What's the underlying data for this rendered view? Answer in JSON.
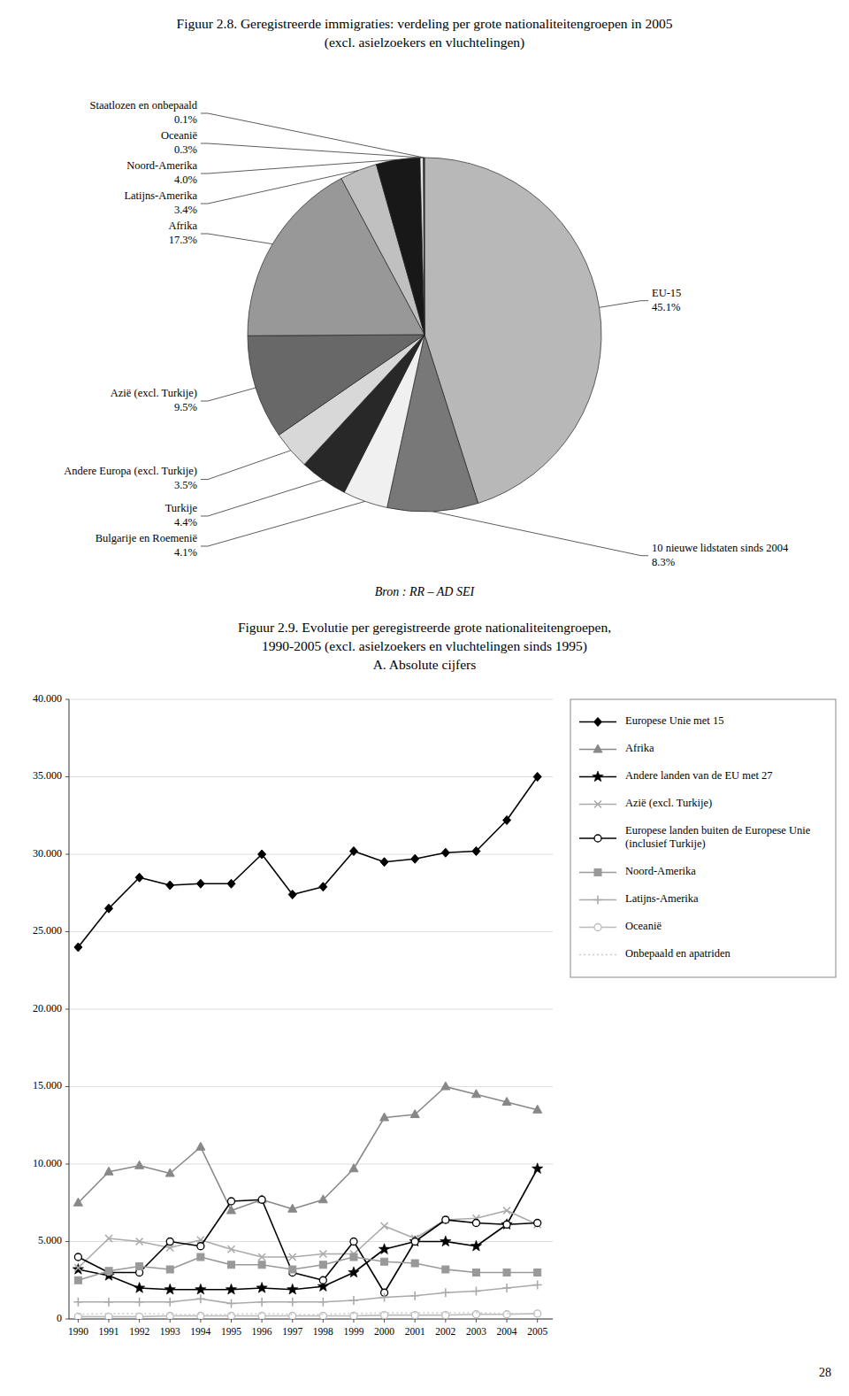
{
  "chart_data": [
    {
      "type": "pie",
      "title": "Figuur 2.8. Geregistreerde immigraties: verdeling per grote nationaliteitengroepen in 2005",
      "subtitle": "(excl. asielzoekers en vluchtelingen)",
      "categories": [
        "EU-15",
        "10 nieuwe lidstaten sinds 2004",
        "Bulgarije en Roemenië",
        "Turkije",
        "Andere Europa (excl. Turkije)",
        "Azië (excl. Turkije)",
        "Afrika",
        "Latijns-Amerika",
        "Noord-Amerika",
        "Oceanië",
        "Staatlozen en onbepaald"
      ],
      "values": [
        45.1,
        8.3,
        4.1,
        4.4,
        3.5,
        9.5,
        17.3,
        3.4,
        4.0,
        0.3,
        0.1
      ],
      "value_labels": [
        "45.1%",
        "8.3%",
        "4.1%",
        "4.4%",
        "3.5%",
        "9.5%",
        "17.3%",
        "3.4%",
        "4.0%",
        "0.3%",
        "0.1%"
      ],
      "colors": [
        "#b8b8b8",
        "#787878",
        "#f0f0f0",
        "#282828",
        "#d8d8d8",
        "#686868",
        "#989898",
        "#c0c0c0",
        "#181818",
        "#e8e8e8",
        "#484848"
      ],
      "data_labels": true,
      "annotations": [
        "Bron : RR – AD SEI"
      ]
    },
    {
      "type": "line",
      "title": "Figuur 2.9. Evolutie per geregistreerde grote nationaliteitengroepen,",
      "subtitle": [
        "1990-2005 (excl. asielzoekers en vluchtelingen sinds 1995)",
        "A. Absolute cijfers"
      ],
      "x": [
        1990,
        1991,
        1992,
        1993,
        1994,
        1995,
        1996,
        1997,
        1998,
        1999,
        2000,
        2001,
        2002,
        2003,
        2004,
        2005
      ],
      "xlim": [
        1989.7,
        2005.5
      ],
      "xticks": [
        1990,
        1991,
        1992,
        1993,
        1994,
        1995,
        1996,
        1997,
        1998,
        1999,
        2000,
        2001,
        2002,
        2003,
        2004,
        2005
      ],
      "ylim": [
        0,
        40000
      ],
      "yticks": [
        0,
        {
          "value": 5000,
          "label": "5.000"
        },
        {
          "value": 10000,
          "label": "10.000"
        },
        {
          "value": 15000,
          "label": "15.000"
        },
        {
          "value": 20000,
          "label": "20.000"
        },
        {
          "value": 25000,
          "label": "25.000"
        },
        {
          "value": 30000,
          "label": "30.000"
        },
        {
          "value": 35000,
          "label": "35.000"
        },
        {
          "value": 40000,
          "label": "40.000"
        }
      ],
      "grid": true,
      "legend": "right",
      "series": [
        {
          "name": "Europese Unie met 15",
          "color": "#000000",
          "marker": "diamond",
          "line_style": "solid",
          "values": [
            24000,
            26500,
            28500,
            28000,
            28100,
            28100,
            30000,
            27400,
            27900,
            30200,
            29500,
            29700,
            30100,
            30200,
            32200,
            35000
          ]
        },
        {
          "name": "Afrika",
          "color": "#888888",
          "marker": "triangle",
          "line_style": "solid",
          "values": [
            7500,
            9500,
            9900,
            9400,
            11100,
            7000,
            7700,
            7100,
            7700,
            9700,
            13000,
            13200,
            15000,
            14500,
            14000,
            13500
          ]
        },
        {
          "name": "Andere landen van de EU met 27",
          "color": "#000000",
          "marker": "star",
          "line_style": "solid",
          "values": [
            3200,
            2800,
            2000,
            1900,
            1900,
            1900,
            2000,
            1900,
            2100,
            3000,
            4500,
            5000,
            5000,
            4700,
            6100,
            9700
          ]
        },
        {
          "name": "Azië (excl. Turkije)",
          "color": "#aaaaaa",
          "marker": "x",
          "line_style": "solid",
          "values": [
            3300,
            5200,
            5000,
            4600,
            5100,
            4500,
            4000,
            4000,
            4200,
            4200,
            6000,
            5200,
            6400,
            6500,
            7000,
            6100
          ]
        },
        {
          "name": "Europese landen buiten de Europese Unie (inclusief Turkije)",
          "color": "#000000",
          "marker": "open-circle",
          "line_style": "solid",
          "values": [
            4000,
            3000,
            3000,
            5000,
            4700,
            7600,
            7700,
            3000,
            2500,
            5000,
            1700,
            5000,
            6400,
            6200,
            6100,
            6200
          ]
        },
        {
          "name": "Noord-Amerika",
          "color": "#999999",
          "marker": "square",
          "line_style": "solid",
          "values": [
            2500,
            3100,
            3400,
            3200,
            4000,
            3500,
            3500,
            3200,
            3500,
            4000,
            3700,
            3600,
            3200,
            3000,
            3000,
            3000
          ]
        },
        {
          "name": "Latijns-Amerika",
          "color": "#aaaaaa",
          "marker": "plus",
          "line_style": "solid",
          "values": [
            1100,
            1100,
            1100,
            1100,
            1300,
            1000,
            1100,
            1100,
            1100,
            1200,
            1400,
            1500,
            1700,
            1800,
            2000,
            2200
          ]
        },
        {
          "name": "Oceanië",
          "color": "#bbbbbb",
          "marker": "open-circle",
          "line_style": "solid",
          "values": [
            150,
            150,
            150,
            200,
            200,
            200,
            200,
            200,
            200,
            200,
            250,
            250,
            250,
            300,
            300,
            350
          ]
        },
        {
          "name": "Onbepaald en apatriden",
          "color": "#cccccc",
          "marker": "none",
          "line_style": "dotted",
          "values": [
            300,
            350,
            350,
            300,
            300,
            300,
            350,
            300,
            300,
            350,
            400,
            400,
            400,
            400,
            350,
            350
          ]
        }
      ],
      "annotations": [
        "28"
      ]
    }
  ]
}
